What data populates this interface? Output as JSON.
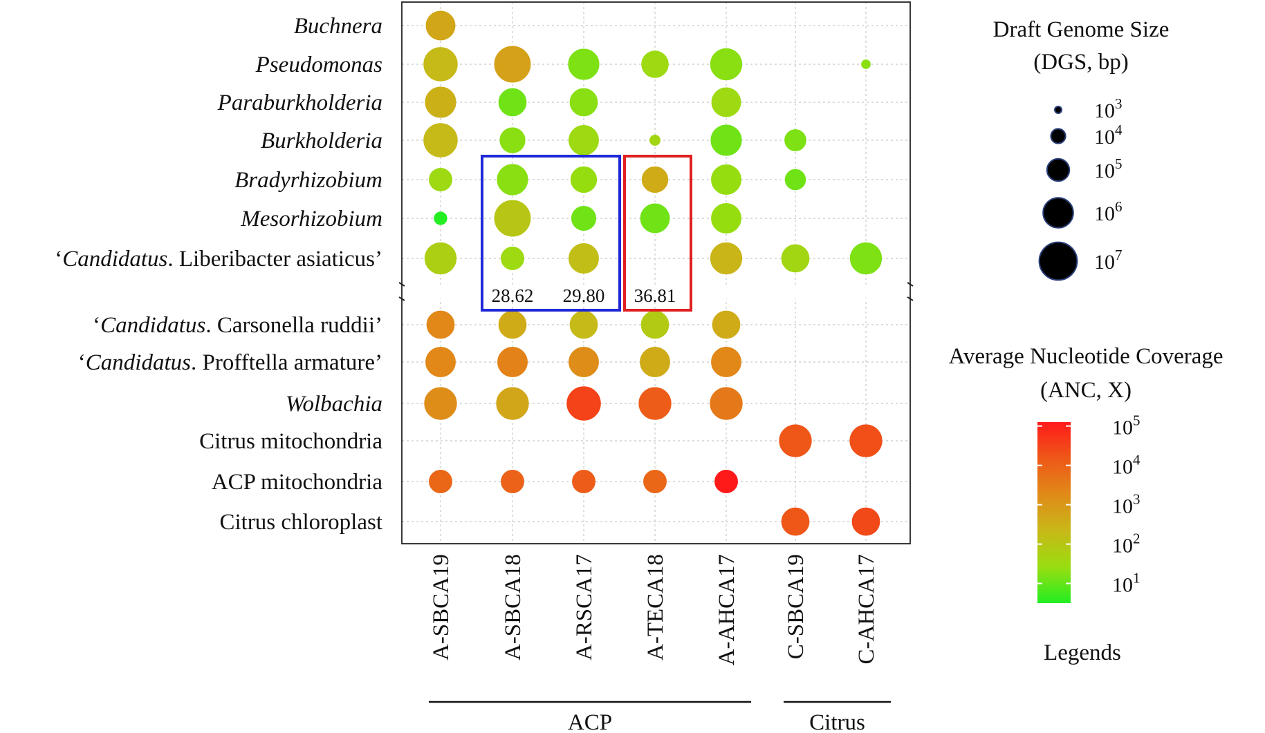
{
  "chart_data": {
    "type": "bubble-matrix",
    "rows": [
      {
        "name": "Buchnera",
        "prefix": "",
        "italic": "Buchnera",
        "rest": ""
      },
      {
        "name": "Pseudomonas",
        "prefix": "",
        "italic": "Pseudomonas",
        "rest": ""
      },
      {
        "name": "Paraburkholderia",
        "prefix": "",
        "italic": "Paraburkholderia",
        "rest": ""
      },
      {
        "name": "Burkholderia",
        "prefix": "",
        "italic": "Burkholderia",
        "rest": ""
      },
      {
        "name": "Bradyrhizobium",
        "prefix": "",
        "italic": "Bradyrhizobium",
        "rest": ""
      },
      {
        "name": "Mesorhizobium",
        "prefix": "",
        "italic": "Mesorhizobium",
        "rest": ""
      },
      {
        "name": "‘Candidatus. Liberibacter asiaticus’",
        "prefix": "‘",
        "italic": "Candidatus",
        "rest": ". Liberibacter asiaticus’"
      },
      {
        "name": "‘Candidatus. Carsonella ruddii’",
        "prefix": "‘",
        "italic": "Candidatus",
        "rest": ". Carsonella ruddii’"
      },
      {
        "name": "‘Candidatus. Profftella armature’",
        "prefix": "‘",
        "italic": "Candidatus",
        "rest": ". Profftella armature’"
      },
      {
        "name": "Wolbachia",
        "prefix": "",
        "italic": "Wolbachia",
        "rest": ""
      },
      {
        "name": "Citrus mitochondria",
        "prefix": "Citrus mitochondria",
        "italic": "",
        "rest": ""
      },
      {
        "name": "ACP mitochondria",
        "prefix": "ACP mitochondria",
        "italic": "",
        "rest": ""
      },
      {
        "name": "Citrus chloroplast",
        "prefix": "Citrus chloroplast",
        "italic": "",
        "rest": ""
      }
    ],
    "columns": [
      "A-SBCA19",
      "A-SBCA18",
      "A-RSCA17",
      "A-TECA18",
      "A-AHCA17",
      "C-SBCA19",
      "C-AHCA17"
    ],
    "groups": [
      {
        "label": "ACP",
        "columns": [
          "A-SBCA19",
          "A-SBCA18",
          "A-RSCA17",
          "A-TECA18",
          "A-AHCA17"
        ]
      },
      {
        "label": "Citrus",
        "columns": [
          "C-SBCA19",
          "C-AHCA17"
        ]
      }
    ],
    "points": [
      {
        "row": "Buchnera",
        "col": "A-SBCA19",
        "log10_dgs": 5.8,
        "log10_anc": 2.7
      },
      {
        "row": "Pseudomonas",
        "col": "A-SBCA19",
        "log10_dgs": 6.4,
        "log10_anc": 2.3
      },
      {
        "row": "Pseudomonas",
        "col": "A-SBCA18",
        "log10_dgs": 6.7,
        "log10_anc": 2.8
      },
      {
        "row": "Pseudomonas",
        "col": "A-RSCA17",
        "log10_dgs": 6.0,
        "log10_anc": 1.2
      },
      {
        "row": "Pseudomonas",
        "col": "A-TECA18",
        "log10_dgs": 5.5,
        "log10_anc": 1.5
      },
      {
        "row": "Pseudomonas",
        "col": "A-AHCA17",
        "log10_dgs": 6.1,
        "log10_anc": 1.3
      },
      {
        "row": "Pseudomonas",
        "col": "C-AHCA17",
        "log10_dgs": 3.2,
        "log10_anc": 1.3
      },
      {
        "row": "Paraburkholderia",
        "col": "A-SBCA19",
        "log10_dgs": 6.0,
        "log10_anc": 2.5
      },
      {
        "row": "Paraburkholderia",
        "col": "A-SBCA18",
        "log10_dgs": 5.6,
        "log10_anc": 1.1
      },
      {
        "row": "Paraburkholderia",
        "col": "A-RSCA17",
        "log10_dgs": 5.6,
        "log10_anc": 1.3
      },
      {
        "row": "Paraburkholderia",
        "col": "A-AHCA17",
        "log10_dgs": 5.8,
        "log10_anc": 1.5
      },
      {
        "row": "Burkholderia",
        "col": "A-SBCA19",
        "log10_dgs": 6.4,
        "log10_anc": 2.3
      },
      {
        "row": "Burkholderia",
        "col": "A-SBCA18",
        "log10_dgs": 5.3,
        "log10_anc": 1.3
      },
      {
        "row": "Burkholderia",
        "col": "A-RSCA17",
        "log10_dgs": 5.9,
        "log10_anc": 1.5
      },
      {
        "row": "Burkholderia",
        "col": "A-TECA18",
        "log10_dgs": 3.4,
        "log10_anc": 1.6
      },
      {
        "row": "Burkholderia",
        "col": "A-AHCA17",
        "log10_dgs": 6.0,
        "log10_anc": 1.1
      },
      {
        "row": "Burkholderia",
        "col": "C-SBCA19",
        "log10_dgs": 4.8,
        "log10_anc": 1.2
      },
      {
        "row": "Bradyrhizobium",
        "col": "A-SBCA19",
        "log10_dgs": 5.0,
        "log10_anc": 1.5
      },
      {
        "row": "Bradyrhizobium",
        "col": "A-SBCA18",
        "log10_dgs": 6.0,
        "log10_anc": 1.3
      },
      {
        "row": "Bradyrhizobium",
        "col": "A-RSCA17",
        "log10_dgs": 5.4,
        "log10_anc": 1.4
      },
      {
        "row": "Bradyrhizobium",
        "col": "A-TECA18",
        "log10_dgs": 5.4,
        "log10_anc": 2.6
      },
      {
        "row": "Bradyrhizobium",
        "col": "A-AHCA17",
        "log10_dgs": 5.9,
        "log10_anc": 1.4
      },
      {
        "row": "Bradyrhizobium",
        "col": "C-SBCA19",
        "log10_dgs": 4.7,
        "log10_anc": 1.1
      },
      {
        "row": "Mesorhizobium",
        "col": "A-SBCA19",
        "log10_dgs": 3.7,
        "log10_anc": 0.3
      },
      {
        "row": "Mesorhizobium",
        "col": "A-SBCA18",
        "log10_dgs": 6.7,
        "log10_anc": 2.0
      },
      {
        "row": "Mesorhizobium",
        "col": "A-RSCA17",
        "log10_dgs": 5.2,
        "log10_anc": 1.1
      },
      {
        "row": "Mesorhizobium",
        "col": "A-TECA18",
        "log10_dgs": 5.8,
        "log10_anc": 1.1
      },
      {
        "row": "Mesorhizobium",
        "col": "A-AHCA17",
        "log10_dgs": 5.9,
        "log10_anc": 1.4
      },
      {
        "row": "‘Candidatus. Liberibacter asiaticus’",
        "col": "A-SBCA19",
        "log10_dgs": 6.1,
        "log10_anc": 1.8
      },
      {
        "row": "‘Candidatus. Liberibacter asiaticus’",
        "col": "A-SBCA18",
        "log10_dgs": 5.0,
        "log10_anc": 1.5
      },
      {
        "row": "‘Candidatus. Liberibacter asiaticus’",
        "col": "A-RSCA17",
        "log10_dgs": 5.9,
        "log10_anc": 2.2
      },
      {
        "row": "‘Candidatus. Liberibacter asiaticus’",
        "col": "A-AHCA17",
        "log10_dgs": 6.1,
        "log10_anc": 2.4
      },
      {
        "row": "‘Candidatus. Liberibacter asiaticus’",
        "col": "C-SBCA19",
        "log10_dgs": 5.6,
        "log10_anc": 1.6
      },
      {
        "row": "‘Candidatus. Liberibacter asiaticus’",
        "col": "C-AHCA17",
        "log10_dgs": 6.1,
        "log10_anc": 1.2
      },
      {
        "row": "‘Candidatus. Carsonella ruddii’",
        "col": "A-SBCA19",
        "log10_dgs": 5.6,
        "log10_anc": 3.3
      },
      {
        "row": "‘Candidatus. Carsonella ruddii’",
        "col": "A-SBCA18",
        "log10_dgs": 5.6,
        "log10_anc": 2.6
      },
      {
        "row": "‘Candidatus. Carsonella ruddii’",
        "col": "A-RSCA17",
        "log10_dgs": 5.6,
        "log10_anc": 2.3
      },
      {
        "row": "‘Candidatus. Carsonella ruddii’",
        "col": "A-TECA18",
        "log10_dgs": 5.6,
        "log10_anc": 1.9
      },
      {
        "row": "‘Candidatus. Carsonella ruddii’",
        "col": "A-AHCA17",
        "log10_dgs": 5.6,
        "log10_anc": 2.6
      },
      {
        "row": "‘Candidatus. Profftella armature’",
        "col": "A-SBCA19",
        "log10_dgs": 5.9,
        "log10_anc": 3.3
      },
      {
        "row": "‘Candidatus. Profftella armature’",
        "col": "A-SBCA18",
        "log10_dgs": 5.9,
        "log10_anc": 3.4
      },
      {
        "row": "‘Candidatus. Profftella armature’",
        "col": "A-RSCA17",
        "log10_dgs": 5.9,
        "log10_anc": 3.2
      },
      {
        "row": "‘Candidatus. Profftella armature’",
        "col": "A-TECA18",
        "log10_dgs": 5.9,
        "log10_anc": 2.6
      },
      {
        "row": "‘Candidatus. Profftella armature’",
        "col": "A-AHCA17",
        "log10_dgs": 5.9,
        "log10_anc": 3.3
      },
      {
        "row": "Wolbachia",
        "col": "A-SBCA19",
        "log10_dgs": 6.2,
        "log10_anc": 3.2
      },
      {
        "row": "Wolbachia",
        "col": "A-SBCA18",
        "log10_dgs": 6.2,
        "log10_anc": 2.7
      },
      {
        "row": "Wolbachia",
        "col": "A-RSCA17",
        "log10_dgs": 6.4,
        "log10_anc": 4.5
      },
      {
        "row": "Wolbachia",
        "col": "A-TECA18",
        "log10_dgs": 6.2,
        "log10_anc": 4.1
      },
      {
        "row": "Wolbachia",
        "col": "A-AHCA17",
        "log10_dgs": 6.2,
        "log10_anc": 3.6
      },
      {
        "row": "Citrus mitochondria",
        "col": "C-SBCA19",
        "log10_dgs": 6.2,
        "log10_anc": 4.2
      },
      {
        "row": "Citrus mitochondria",
        "col": "C-AHCA17",
        "log10_dgs": 6.2,
        "log10_anc": 4.3
      },
      {
        "row": "ACP mitochondria",
        "col": "A-SBCA19",
        "log10_dgs": 5.0,
        "log10_anc": 3.9
      },
      {
        "row": "ACP mitochondria",
        "col": "A-SBCA18",
        "log10_dgs": 5.0,
        "log10_anc": 4.0
      },
      {
        "row": "ACP mitochondria",
        "col": "A-RSCA17",
        "log10_dgs": 5.0,
        "log10_anc": 4.1
      },
      {
        "row": "ACP mitochondria",
        "col": "A-TECA18",
        "log10_dgs": 5.0,
        "log10_anc": 3.9
      },
      {
        "row": "ACP mitochondria",
        "col": "A-AHCA17",
        "log10_dgs": 5.0,
        "log10_anc": 5.1
      },
      {
        "row": "Citrus chloroplast",
        "col": "C-SBCA19",
        "log10_dgs": 5.6,
        "log10_anc": 4.2
      },
      {
        "row": "Citrus chloroplast",
        "col": "C-AHCA17",
        "log10_dgs": 5.6,
        "log10_anc": 4.4
      }
    ],
    "highlight_boxes": [
      {
        "color": "#1f28d8",
        "columns": [
          "A-SBCA18",
          "A-RSCA17"
        ],
        "rows": [
          "Bradyrhizobium",
          "‘Candidatus. Liberibacter asiaticus’"
        ],
        "values": [
          "28.62",
          "29.80"
        ]
      },
      {
        "color": "#e02020",
        "columns": [
          "A-TECA18"
        ],
        "rows": [
          "Bradyrhizobium",
          "‘Candidatus. Liberibacter asiaticus’"
        ],
        "values": [
          "36.81"
        ]
      }
    ],
    "size_legend": {
      "title_line1": "Draft Genome Size",
      "title_line2": "(DGS,  bp)",
      "entries": [
        {
          "base": "10",
          "exp": "3",
          "log10": 3
        },
        {
          "base": "10",
          "exp": "4",
          "log10": 4
        },
        {
          "base": "10",
          "exp": "5",
          "log10": 5
        },
        {
          "base": "10",
          "exp": "6",
          "log10": 6
        },
        {
          "base": "10",
          "exp": "7",
          "log10": 7
        }
      ]
    },
    "color_legend": {
      "title_line1": "Average Nucleotide Coverage",
      "title_line2": "(ANC, X)",
      "range": [
        0.5,
        5.1
      ],
      "colors": [
        "#22ee22",
        "#99dd10",
        "#c8b818",
        "#e08a18",
        "#ee5818",
        "#ff1a1a"
      ],
      "ticks": [
        {
          "base": "10",
          "exp": "1",
          "log10": 1
        },
        {
          "base": "10",
          "exp": "2",
          "log10": 2
        },
        {
          "base": "10",
          "exp": "3",
          "log10": 3
        },
        {
          "base": "10",
          "exp": "4",
          "log10": 4
        },
        {
          "base": "10",
          "exp": "5",
          "log10": 5
        }
      ]
    },
    "legends_label": "Legends"
  }
}
